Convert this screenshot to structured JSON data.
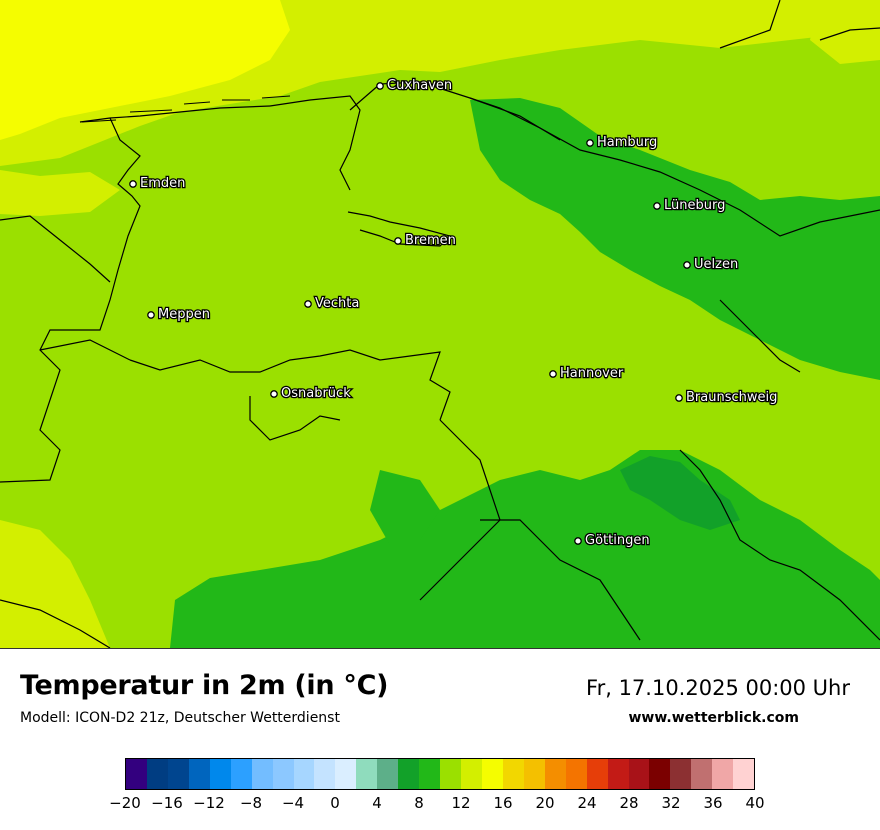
{
  "map": {
    "cities": [
      {
        "name": "Cuxhaven",
        "temp": 14
      },
      {
        "name": "Hamburg",
        "temp": 10
      },
      {
        "name": "Emden",
        "temp": 12
      },
      {
        "name": "Lüneburg",
        "temp": 11
      },
      {
        "name": "Bremen",
        "temp": 12
      },
      {
        "name": "Uelzen",
        "temp": 11
      },
      {
        "name": "Vechta",
        "temp": 12
      },
      {
        "name": "Meppen",
        "temp": 12
      },
      {
        "name": "Hannover",
        "temp": 12
      },
      {
        "name": "Osnabrück",
        "temp": 12
      },
      {
        "name": "Braunschweig",
        "temp": 11
      },
      {
        "name": "Göttingen",
        "temp": 10
      }
    ],
    "colors": {
      "t8": "#12a129",
      "t10": "#22b818",
      "t12": "#9be000",
      "t14": "#d3ef00",
      "t16": "#f5fd00",
      "coastline": "#000000"
    }
  },
  "footer": {
    "title": "Temperatur in 2m (in °C)",
    "subtitle": "Modell: ICON-D2 21z, Deutscher Wetterdienst",
    "datetime": "Fr, 17.10.2025 00:00 Uhr",
    "website": "www.wetterblick.com"
  },
  "legend": {
    "unit": "°C",
    "colors": [
      "#33007f",
      "#003d82",
      "#00458f",
      "#0065be",
      "#0088ec",
      "#2ca0ff",
      "#73bdff",
      "#8cc8ff",
      "#a6d6ff",
      "#c4e3ff",
      "#daeeff",
      "#8fdcbd",
      "#5daf89",
      "#12a129",
      "#22b818",
      "#9be000",
      "#d3ef00",
      "#f5fd00",
      "#f2d700",
      "#f4c000",
      "#f48e00",
      "#f47400",
      "#e63e09",
      "#c31b16",
      "#a81218",
      "#7b0000",
      "#8c3032",
      "#c07070",
      "#f0a7a7",
      "#ffd2d2"
    ],
    "ticks": [
      "−20",
      "−16",
      "−12",
      "−8",
      "−4",
      "0",
      "4",
      "8",
      "12",
      "16",
      "20",
      "24",
      "28",
      "32",
      "36",
      "40"
    ]
  }
}
